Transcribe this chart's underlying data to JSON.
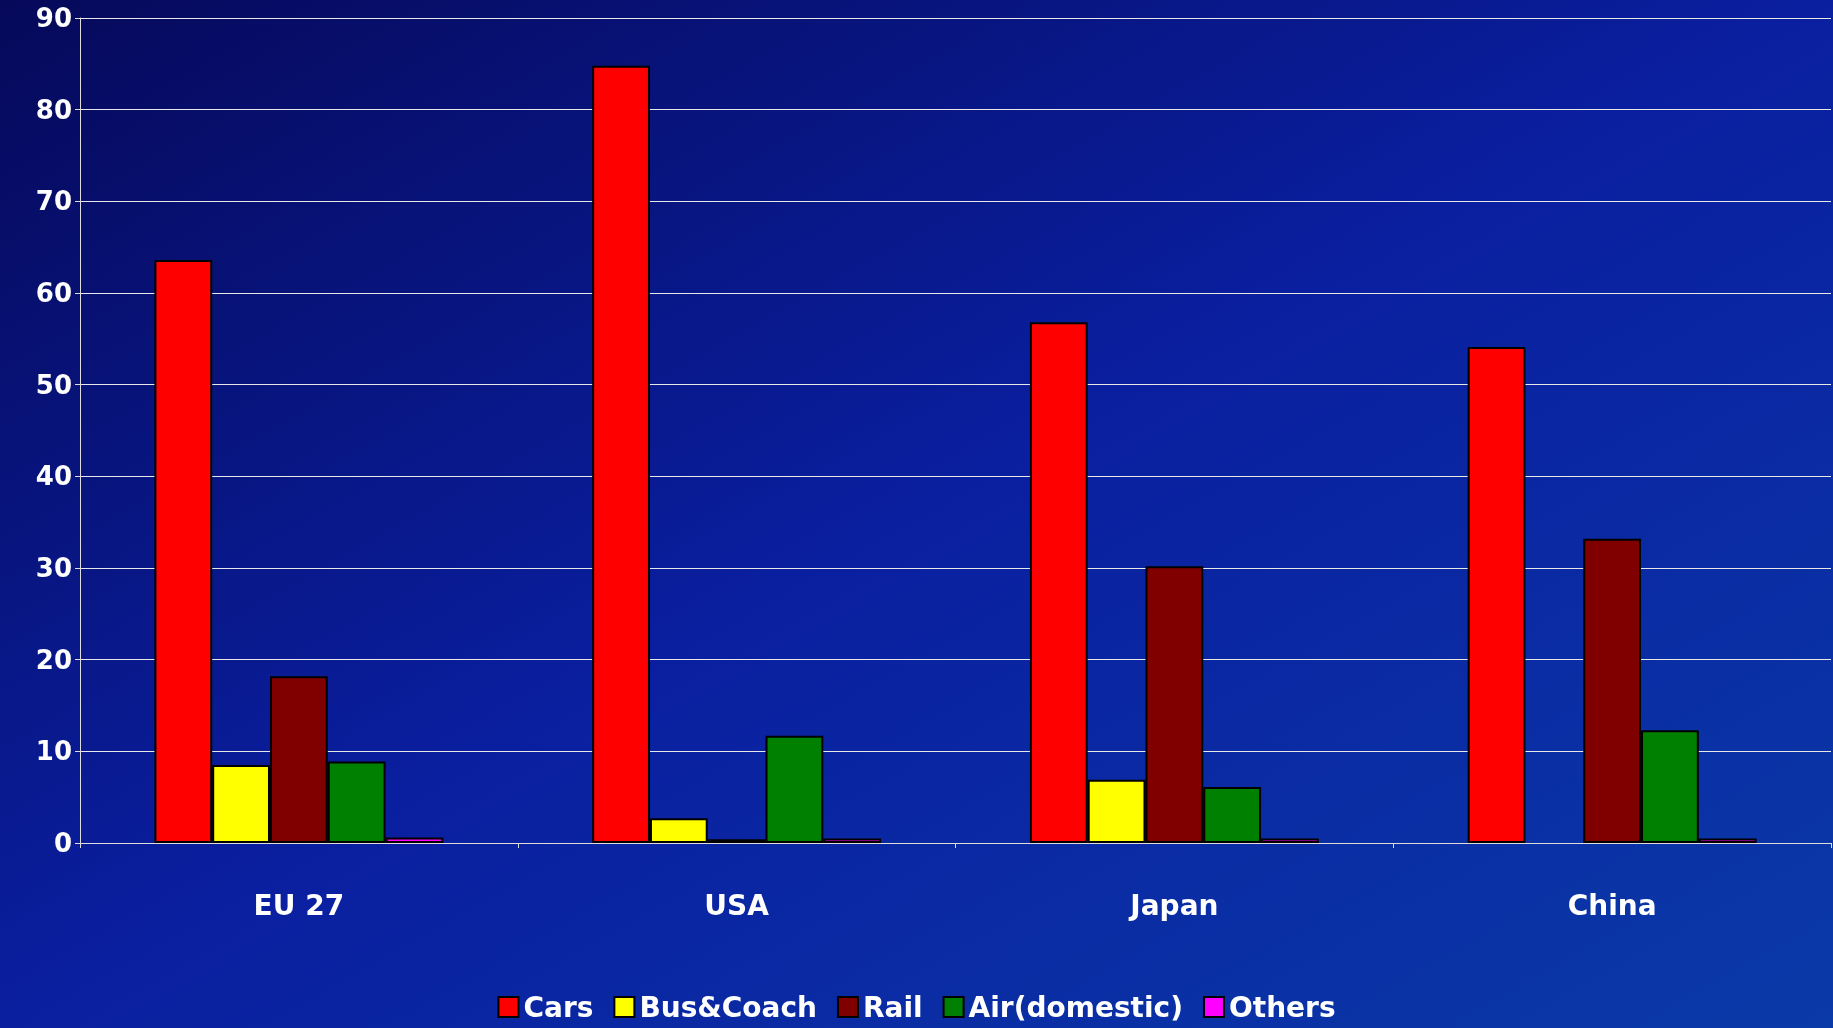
{
  "chart_data": {
    "type": "bar",
    "categories": [
      "EU 27",
      "USA",
      "Japan",
      "China"
    ],
    "series": [
      {
        "name": "Cars",
        "color": "#ff0000",
        "values": [
          63.6,
          84.8,
          56.8,
          54.1
        ]
      },
      {
        "name": "Bus&Coach",
        "color": "#ffff00",
        "values": [
          8.5,
          2.7,
          6.9,
          null
        ]
      },
      {
        "name": "Rail",
        "color": "#800000",
        "values": [
          18.2,
          0.4,
          30.2,
          33.2
        ]
      },
      {
        "name": "Air(domestic)",
        "color": "#008000",
        "values": [
          8.9,
          11.7,
          6.1,
          12.3
        ]
      },
      {
        "name": "Others",
        "color": "#ff00ff",
        "values": [
          0.6,
          0.5,
          0.5,
          0.5
        ]
      }
    ],
    "ylim": [
      0,
      90
    ],
    "yticks": [
      0,
      10,
      20,
      30,
      40,
      50,
      60,
      70,
      80,
      90
    ],
    "grid": "y",
    "legend": "bottom"
  }
}
